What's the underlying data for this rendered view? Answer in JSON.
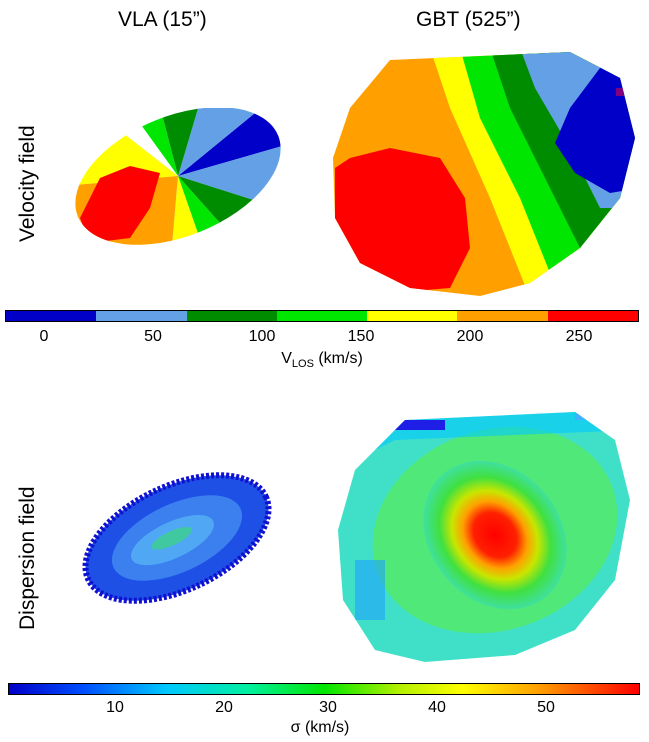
{
  "columns": {
    "left": "VLA (15”)",
    "right": "GBT (525”)"
  },
  "rows": {
    "top": "Velocity field",
    "bottom": "Dispersion field"
  },
  "velocity_colorbar": {
    "ticks": [
      "0",
      "50",
      "100",
      "150",
      "200",
      "250"
    ],
    "label_main": "V",
    "label_sub": "LOS",
    "label_unit": " (km/s)",
    "colors": [
      "#0000c8",
      "#64a0e6",
      "#008c00",
      "#00e600",
      "#ffff00",
      "#ffa000",
      "#ff0000"
    ]
  },
  "dispersion_colorbar": {
    "ticks": [
      "10",
      "20",
      "30",
      "40",
      "50"
    ],
    "label": "σ  (km/s)"
  }
}
